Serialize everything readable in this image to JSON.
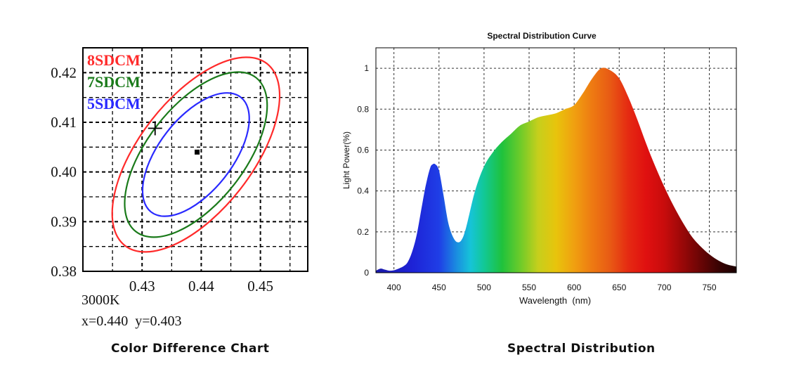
{
  "chart_data": [
    {
      "type": "scatter",
      "caption": "Color Difference Chart",
      "xlim": [
        0.42,
        0.458
      ],
      "ylim": [
        0.38,
        0.425
      ],
      "x_ticks": [
        "0.43",
        "0.44",
        "0.45"
      ],
      "x_tick_values": [
        0.43,
        0.44,
        0.45
      ],
      "y_ticks": [
        "0.42",
        "0.41",
        "0.40",
        "0.39",
        "0.38"
      ],
      "y_tick_values": [
        0.42,
        0.41,
        0.4,
        0.39,
        0.38
      ],
      "grid": true,
      "legend": [
        {
          "name": "8SDCM",
          "color": "#ff2a2a"
        },
        {
          "name": "7SDCM",
          "color": "#1a7a1a"
        },
        {
          "name": "5SDCM",
          "color": "#2a2aff"
        }
      ],
      "ellipses": [
        {
          "name": "8SDCM",
          "cx": 0.4391,
          "cy": 0.4035,
          "rx": 0.0195,
          "ry": 0.0095,
          "angle": -52,
          "color": "#ff2a2a"
        },
        {
          "name": "7SDCM",
          "cx": 0.4391,
          "cy": 0.4035,
          "rx": 0.0165,
          "ry": 0.0082,
          "angle": -52,
          "color": "#1a7a1a"
        },
        {
          "name": "5SDCM",
          "cx": 0.4391,
          "cy": 0.4035,
          "rx": 0.0123,
          "ry": 0.0062,
          "angle": -52,
          "color": "#2a2aff"
        }
      ],
      "center_point": {
        "x": 0.4393,
        "y": 0.404
      },
      "measured_point": {
        "x": 0.4322,
        "y": 0.4088
      },
      "cct_label": "3000K",
      "coord_label": "x=0.440  y=0.403"
    },
    {
      "type": "area",
      "title": "Spectral Distribution Curve",
      "caption": "Spectral Distribution",
      "xlabel": "Wavelength  (nm)",
      "ylabel": "Light Power(%)",
      "xlim": [
        380,
        780
      ],
      "ylim": [
        0,
        1.1
      ],
      "x_ticks": [
        400,
        450,
        500,
        550,
        600,
        650,
        700,
        750
      ],
      "y_ticks": [
        0,
        0.2,
        0.4,
        0.6,
        0.8,
        1
      ],
      "y_tick_labels": [
        "0",
        "0.2",
        "0.4",
        "0.6",
        "0.8",
        "1"
      ],
      "grid": true,
      "x": [
        380,
        385,
        390,
        395,
        400,
        405,
        410,
        415,
        420,
        425,
        430,
        435,
        440,
        443,
        446,
        450,
        455,
        460,
        465,
        470,
        475,
        480,
        490,
        500,
        510,
        520,
        530,
        540,
        550,
        560,
        570,
        580,
        590,
        600,
        610,
        620,
        630,
        640,
        650,
        660,
        670,
        680,
        690,
        700,
        710,
        720,
        730,
        740,
        750,
        760,
        770,
        780
      ],
      "y": [
        0.01,
        0.02,
        0.015,
        0.01,
        0.012,
        0.02,
        0.03,
        0.05,
        0.1,
        0.18,
        0.3,
        0.42,
        0.51,
        0.53,
        0.53,
        0.5,
        0.38,
        0.25,
        0.18,
        0.15,
        0.16,
        0.22,
        0.4,
        0.52,
        0.59,
        0.64,
        0.68,
        0.72,
        0.74,
        0.76,
        0.77,
        0.78,
        0.8,
        0.82,
        0.88,
        0.95,
        1.0,
        0.99,
        0.95,
        0.86,
        0.75,
        0.63,
        0.52,
        0.42,
        0.33,
        0.25,
        0.18,
        0.13,
        0.09,
        0.06,
        0.04,
        0.03
      ]
    }
  ]
}
